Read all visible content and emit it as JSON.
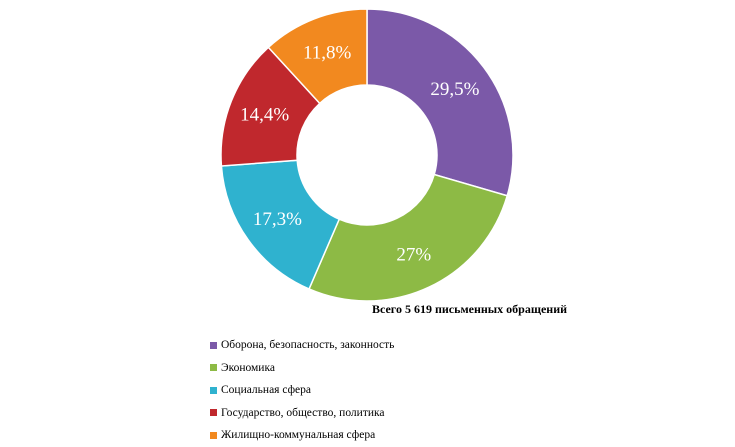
{
  "chart_data": {
    "type": "pie",
    "title": "Всего 5 619 письменных обращений",
    "slices": [
      {
        "label": "Оборона, безопасность, законность",
        "value": 29.5,
        "display": "29,5%",
        "color": "#7b59a8"
      },
      {
        "label": "Экономика",
        "value": 27,
        "display": "27%",
        "color": "#8dba45"
      },
      {
        "label": "Социальная сфера",
        "value": 17.3,
        "display": "17,3%",
        "color": "#2fb2cf"
      },
      {
        "label": "Государство, общество, политика",
        "value": 14.4,
        "display": "14,4%",
        "color": "#c0282d"
      },
      {
        "label": "Жилищно-коммунальная сфера",
        "value": 11.8,
        "display": "11,8%",
        "color": "#f2891f"
      }
    ],
    "legend_position": "bottom"
  }
}
